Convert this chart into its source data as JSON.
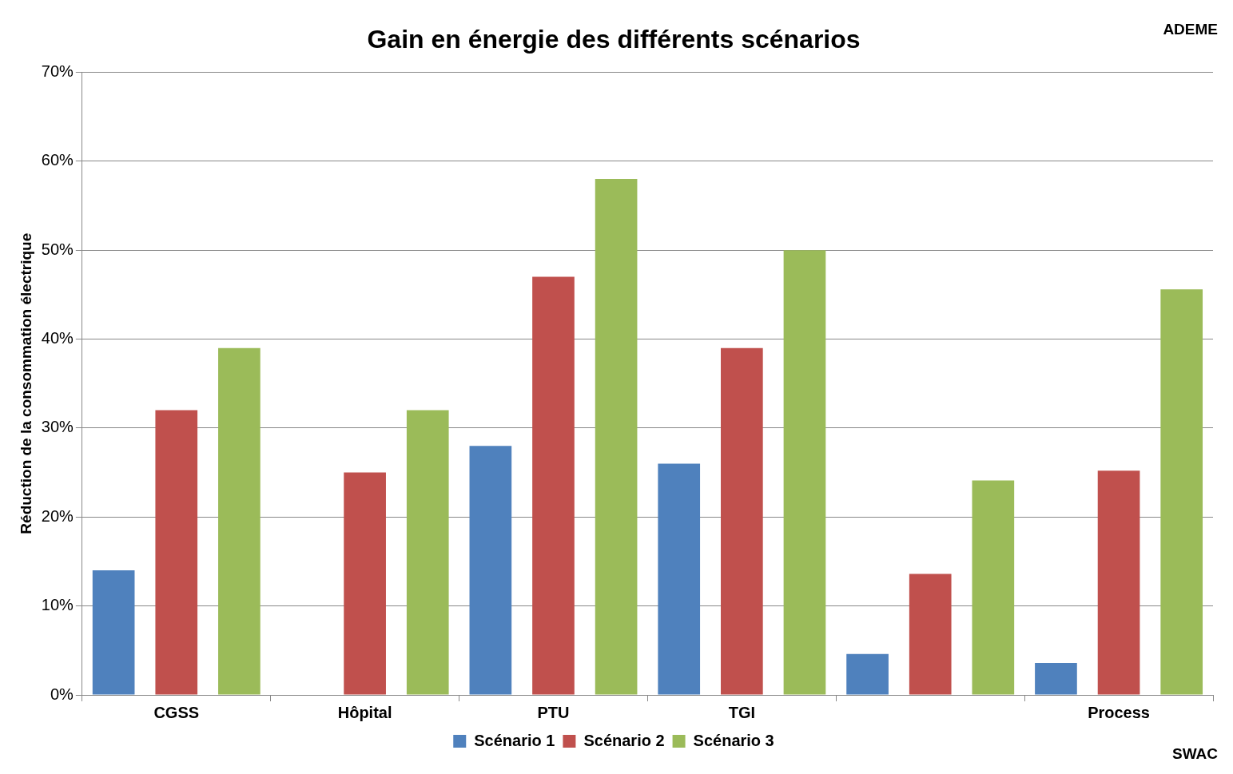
{
  "chart_data": {
    "type": "bar",
    "title": "Gain en énergie des différents scénarios",
    "ylabel": "Réduction de la consommation électrique",
    "categories": [
      "CGSS",
      "Hôpital",
      "PTU",
      "TGI",
      null,
      "Process"
    ],
    "series": [
      {
        "name": "Scénario 1",
        "color": "#4f81bd",
        "values": [
          14,
          null,
          28,
          26,
          4.6,
          3.6
        ]
      },
      {
        "name": "Scénario 2",
        "color": "#c0504d",
        "values": [
          32,
          25,
          47,
          39,
          13.6,
          25.2
        ]
      },
      {
        "name": "Scénario 3",
        "color": "#9bbb59",
        "values": [
          39,
          32,
          58,
          50,
          24.1,
          45.6
        ]
      }
    ],
    "ylim": [
      0,
      70
    ],
    "yticks": [
      {
        "value": 0,
        "label": "0%"
      },
      {
        "value": 10,
        "label": "10%"
      },
      {
        "value": 20,
        "label": "20%"
      },
      {
        "value": 30,
        "label": "30%"
      },
      {
        "value": 40,
        "label": "40%"
      },
      {
        "value": 50,
        "label": "50%"
      },
      {
        "value": 60,
        "label": "60%"
      },
      {
        "value": 70,
        "label": "70%"
      }
    ],
    "grid": "y",
    "legend": "bottom",
    "annotations": [
      "ADEME",
      "SWAC"
    ]
  }
}
